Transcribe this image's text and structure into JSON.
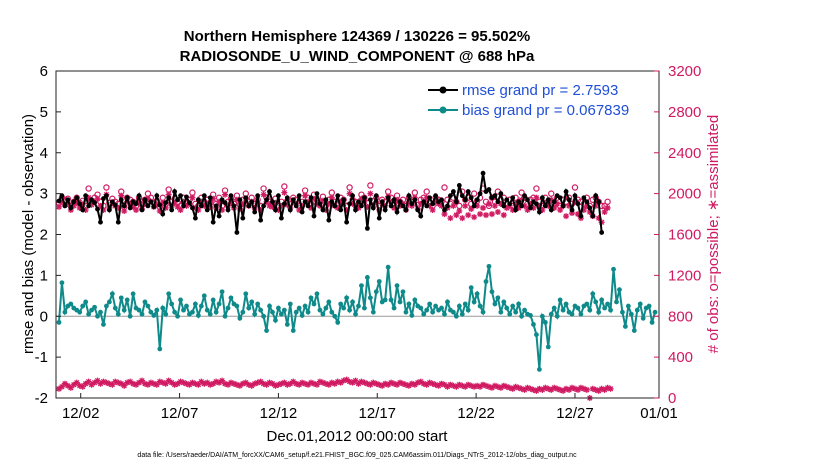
{
  "chart_data": {
    "type": "line",
    "title": "Northern Hemisphere 124369 / 130226 = 95.502%",
    "subtitle": "RADIOSONDE_U_WIND_COMPONENT @ 688 hPa",
    "xlabel": "Dec.01,2012 00:00:00 start",
    "ylabel": "rmse and bias (model - observation)",
    "ylabel_right": "# of obs: o=possible; ∗=assimilated",
    "xlim": [
      0.5,
      61.5
    ],
    "ylim": [
      -2,
      6
    ],
    "ylim_right": [
      0,
      3200
    ],
    "x_ticks": [
      {
        "x": 3,
        "label": "12/02"
      },
      {
        "x": 13,
        "label": "12/07"
      },
      {
        "x": 23,
        "label": "12/12"
      },
      {
        "x": 33,
        "label": "12/17"
      },
      {
        "x": 43,
        "label": "12/22"
      },
      {
        "x": 53,
        "label": "12/27"
      },
      {
        "x": 63,
        "label": "01/01"
      }
    ],
    "y_ticks": [
      "-2",
      "-1",
      "0",
      "1",
      "2",
      "3",
      "4",
      "5",
      "6"
    ],
    "y_ticks_right": [
      "0",
      "400",
      "800",
      "1200",
      "1600",
      "2000",
      "2400",
      "2800",
      "3200"
    ],
    "colors": {
      "rmse": "#000000",
      "bias": "#0f8a8a",
      "obs": "#d01a62",
      "legend_text": "#1f4fd8",
      "zero_line": "#999999"
    },
    "series": [
      {
        "name": "rmse grand pr = 2.7593",
        "axis": "left",
        "values": [
          2.82,
          2.95,
          2.7,
          2.85,
          2.65,
          2.8,
          2.9,
          2.75,
          2.6,
          2.95,
          2.7,
          2.85,
          2.78,
          2.62,
          2.3,
          2.88,
          2.95,
          2.6,
          2.8,
          2.72,
          2.3,
          2.85,
          2.7,
          2.9,
          2.65,
          2.8,
          2.75,
          2.95,
          2.6,
          2.85,
          2.7,
          2.8,
          2.68,
          2.95,
          2.72,
          2.5,
          2.78,
          2.9,
          2.6,
          3.05,
          2.85,
          2.95,
          2.7,
          2.92,
          2.78,
          2.65,
          2.4,
          2.85,
          2.7,
          2.95,
          2.6,
          2.9,
          2.3,
          2.7,
          2.45,
          2.85,
          2.78,
          2.6,
          2.95,
          2.7,
          2.05,
          2.85,
          2.4,
          2.9,
          2.7,
          2.8,
          2.55,
          2.95,
          2.35,
          2.7,
          2.85,
          3.05,
          2.8,
          2.6,
          2.95,
          2.4,
          2.75,
          2.9,
          2.6,
          2.85,
          2.7,
          2.95,
          2.55,
          2.8,
          2.7,
          2.9,
          2.45,
          3.0,
          2.75,
          2.6,
          2.85,
          2.35,
          2.8,
          2.7,
          2.95,
          2.6,
          2.85,
          2.3,
          2.75,
          2.95,
          2.6,
          2.8,
          2.7,
          2.9,
          2.15,
          2.85,
          2.65,
          2.95,
          2.4,
          2.8,
          2.6,
          2.9,
          2.7,
          2.85,
          2.55,
          2.8,
          2.7,
          2.6,
          2.95,
          2.75,
          2.85,
          2.6,
          2.45,
          2.8,
          2.7,
          2.9,
          2.75,
          2.95,
          2.8,
          2.85,
          2.6,
          2.7,
          2.95,
          3.05,
          2.8,
          3.2,
          2.95,
          2.85,
          3.05,
          2.9,
          2.7,
          2.85,
          3.0,
          3.5,
          3.05,
          3.1,
          2.9,
          2.95,
          2.8,
          3.0,
          2.7,
          2.85,
          2.75,
          2.9,
          2.6,
          2.8,
          2.7,
          2.95,
          2.85,
          2.65,
          2.8,
          2.75,
          2.55,
          2.9,
          2.7,
          2.85,
          2.6,
          2.8,
          2.95,
          2.9,
          2.7,
          3.05,
          2.85,
          2.6,
          2.95,
          2.75,
          2.45,
          2.9,
          2.8,
          2.65,
          2.45,
          2.95,
          2.8,
          2.05
        ]
      },
      {
        "name": "bias grand pr = 0.067839",
        "axis": "left",
        "values": [
          -0.15,
          0.82,
          0.1,
          0.25,
          0.3,
          0.2,
          0.15,
          0.1,
          0.25,
          0.35,
          0.05,
          0.15,
          0.22,
          0.0,
          0.1,
          -0.2,
          0.25,
          0.35,
          0.55,
          0.2,
          0.05,
          0.45,
          0.15,
          0.4,
          0.0,
          0.55,
          0.2,
          0.15,
          0.05,
          0.35,
          0.25,
          0.1,
          0.02,
          0.15,
          -0.8,
          0.2,
          0.05,
          0.55,
          0.3,
          0.1,
          0.0,
          0.4,
          0.15,
          0.25,
          0.05,
          0.1,
          0.3,
          0.02,
          0.25,
          0.5,
          0.15,
          0.05,
          0.4,
          0.1,
          0.3,
          0.6,
          0.0,
          0.2,
          0.45,
          0.3,
          0.25,
          -0.05,
          0.1,
          0.55,
          0.2,
          0.35,
          0.05,
          0.3,
          0.15,
          0.0,
          -0.35,
          0.25,
          0.1,
          -0.1,
          0.2,
          0.05,
          0.15,
          -0.2,
          0.3,
          -0.35,
          0.1,
          0.2,
          0.02,
          0.25,
          0.1,
          0.45,
          0.3,
          0.55,
          0.15,
          0.05,
          0.2,
          0.35,
          0.1,
          0.0,
          -0.15,
          0.3,
          0.2,
          0.45,
          0.15,
          0.35,
          0.05,
          0.25,
          0.75,
          0.2,
          0.95,
          0.45,
          0.1,
          0.6,
          0.85,
          0.35,
          0.4,
          1.2,
          0.4,
          0.2,
          0.75,
          0.35,
          0.6,
          0.1,
          0.3,
          0.02,
          0.4,
          0.25,
          0.2,
          0.05,
          0.15,
          0.3,
          0.1,
          0.25,
          0.15,
          0.2,
          0.05,
          0.35,
          0.15,
          0.1,
          0.0,
          0.25,
          0.05,
          0.3,
          0.15,
          0.7,
          0.35,
          0.55,
          0.25,
          0.1,
          0.85,
          1.22,
          0.6,
          0.3,
          0.45,
          0.1,
          0.35,
          0.2,
          0.05,
          0.25,
          0.1,
          0.3,
          0.0,
          0.15,
          0.05,
          0.02,
          -0.2,
          -0.45,
          -1.3,
          0.0,
          -0.15,
          -0.75,
          0.05,
          0.2,
          0.0,
          0.4,
          0.15,
          0.3,
          0.1,
          0.05,
          0.25,
          0.2,
          0.05,
          0.25,
          0.3,
          0.15,
          0.55,
          0.35,
          0.1,
          0.4,
          0.2,
          0.3,
          0.15,
          1.15,
          0.35,
          0.65,
          0.1,
          -0.25,
          0.25,
          0.05,
          -0.35,
          0.15,
          0.3,
          -0.05,
          0.2,
          0.25,
          -0.15,
          0.1,
          0.05,
          -0.1,
          0.55,
          0.25,
          0.9,
          0.35,
          0.6,
          0.45,
          0.3,
          0.75,
          0.2,
          0.55,
          0.1,
          0.6,
          0.2,
          0.05,
          0.35,
          0.2,
          0.1,
          -0.1,
          0.25,
          0.5,
          0.15,
          0.05,
          0.3,
          0.1,
          0.05,
          -0.35
        ]
      },
      {
        "name": "possible",
        "axis": "right",
        "marker": "o",
        "values": [
          1910,
          1960,
          1940,
          1950,
          1880,
          1920,
          1960,
          1910,
          1930,
          1880,
          2050,
          1930,
          1960,
          1990,
          1920,
          1880,
          2060,
          1910,
          1950,
          1920,
          1900,
          2020,
          1870,
          1960,
          1940,
          1920,
          1880,
          1960,
          1890,
          1940,
          2000,
          1960,
          1910,
          1930,
          1870,
          1960,
          1900,
          2040,
          1920,
          1950,
          1910,
          1880,
          1960,
          1920,
          1940,
          2010,
          1900,
          1880,
          1960,
          1920,
          1940,
          1910,
          1990,
          1900,
          1960,
          1880,
          2030,
          1920,
          1950,
          1900,
          1980,
          1890,
          1940,
          2000,
          1920,
          1960,
          1900,
          1940,
          1880,
          2050,
          1960,
          1920,
          1910,
          1950,
          1880,
          1920,
          2070,
          1930,
          1900,
          1960,
          1940,
          1880,
          1920,
          2030,
          1960,
          1900,
          1990,
          1940,
          1920,
          1970,
          1880,
          1940,
          2010,
          1920,
          1900,
          1960,
          1940,
          1880,
          2060,
          1940,
          1920,
          1900,
          1990,
          1960,
          1910,
          2080,
          1930,
          1960,
          1880,
          1940,
          1920,
          2020,
          1960,
          1900,
          1980,
          1920,
          1940,
          1880,
          1960,
          1920,
          2010,
          1890,
          1940,
          1960,
          2020,
          1920,
          1880,
          1960,
          1940,
          1920,
          2060,
          1940,
          1900,
          1960,
          1920,
          1880,
          2020,
          1940,
          1960,
          1900,
          2000,
          1930,
          1960,
          2050,
          1920,
          1880,
          1960,
          1920,
          2020,
          1940,
          1960,
          1900,
          1940,
          1880,
          1960,
          1920,
          2010,
          1960,
          1900,
          1940,
          1960,
          2050,
          1920,
          1880,
          1960,
          1920,
          2000,
          1900,
          1960,
          1880,
          1940,
          1920,
          1960,
          1900,
          2060,
          1940,
          1920,
          1900,
          1960,
          1880,
          1940,
          1960,
          1920,
          1880,
          1880,
          1920
        ]
      },
      {
        "name": "assimilated",
        "axis": "right",
        "marker": "*",
        "values": [
          1870,
          1920,
          1890,
          1900,
          1840,
          1880,
          1910,
          1860,
          1890,
          1840,
          1960,
          1890,
          1920,
          1950,
          1880,
          1840,
          1990,
          1860,
          1910,
          1880,
          1860,
          1980,
          1830,
          1920,
          1900,
          1870,
          1840,
          1920,
          1850,
          1900,
          1950,
          1920,
          1870,
          1890,
          1830,
          1910,
          1860,
          1990,
          1880,
          1910,
          1870,
          1840,
          1920,
          1880,
          1900,
          1960,
          1860,
          1840,
          1920,
          1880,
          1900,
          1870,
          1950,
          1860,
          1920,
          1840,
          1990,
          1880,
          1910,
          1860,
          1940,
          1850,
          1900,
          1950,
          1880,
          1920,
          1860,
          1900,
          1840,
          1990,
          1920,
          1880,
          1870,
          1910,
          1840,
          1880,
          2010,
          1890,
          1860,
          1920,
          1900,
          1840,
          1880,
          1980,
          1920,
          1860,
          1950,
          1900,
          1880,
          1930,
          1840,
          1900,
          1960,
          1880,
          1860,
          1920,
          1900,
          1840,
          2000,
          1900,
          1880,
          1860,
          1950,
          1920,
          1870,
          2000,
          1890,
          1920,
          1840,
          1900,
          1880,
          1970,
          1920,
          1860,
          1940,
          1880,
          1900,
          1840,
          1920,
          1880,
          1960,
          1850,
          1900,
          1920,
          1960,
          1880,
          1840,
          1920,
          1900,
          1880,
          1800,
          1860,
          1760,
          1880,
          1790,
          1830,
          1760,
          1880,
          1790,
          1850,
          1770,
          1880,
          1800,
          1860,
          1790,
          1900,
          1800,
          1880,
          1820,
          1900,
          1790,
          1860,
          1880,
          1840,
          1900,
          1860,
          1940,
          1880,
          1840,
          1900,
          1860,
          1960,
          1880,
          1840,
          1900,
          1880,
          1940,
          1860,
          1900,
          1840,
          1880,
          1780,
          1880,
          1810,
          1920,
          1800,
          1760,
          1840,
          1880,
          1820,
          1780,
          1880,
          1760,
          1720,
          1820,
          1860
        ]
      },
      {
        "name": "lower obs count",
        "axis": "right",
        "marker": "*",
        "values": [
          90,
          110,
          140,
          120,
          100,
          130,
          150,
          120,
          110,
          140,
          160,
          130,
          150,
          170,
          140,
          160,
          150,
          140,
          130,
          160,
          150,
          140,
          120,
          150,
          160,
          140,
          130,
          150,
          170,
          140,
          130,
          150,
          140,
          130,
          160,
          150,
          140,
          170,
          150,
          130,
          140,
          160,
          150,
          140,
          130,
          150,
          140,
          130,
          160,
          140,
          150,
          130,
          140,
          160,
          150,
          170,
          140,
          130,
          150,
          140,
          130,
          120,
          140,
          150,
          130,
          120,
          140,
          150,
          160,
          140,
          130,
          150,
          140,
          120,
          130,
          140,
          150,
          130,
          140,
          160,
          140,
          130,
          150,
          140,
          130,
          150,
          140,
          130,
          160,
          150,
          140,
          130,
          150,
          140,
          160,
          150,
          170,
          180,
          160,
          150,
          170,
          140,
          160,
          150,
          140,
          130,
          150,
          140,
          130,
          120,
          140,
          130,
          150,
          140,
          130,
          150,
          140,
          130,
          120,
          140,
          130,
          150,
          160,
          140,
          130,
          150,
          140,
          130,
          120,
          140,
          130,
          110,
          130,
          120,
          110,
          130,
          120,
          110,
          130,
          120,
          110,
          120,
          110,
          130,
          120,
          110,
          100,
          120,
          110,
          100,
          120,
          110,
          100,
          90,
          110,
          100,
          90,
          80,
          100,
          90,
          80,
          70,
          90,
          80,
          100,
          90,
          80,
          100,
          90,
          80,
          70,
          90,
          80,
          100,
          90,
          80,
          100,
          90,
          80,
          0,
          90,
          80,
          70,
          90,
          80,
          100,
          90
        ]
      }
    ]
  },
  "footer_text": "data file: /Users/raeder/DAI/ATM_forcXX/CAM6_setup/f.e21.FHIST_BGC.f09_025.CAM6assim.011/Diags_NTrS_2012-12/obs_diag_output.nc"
}
